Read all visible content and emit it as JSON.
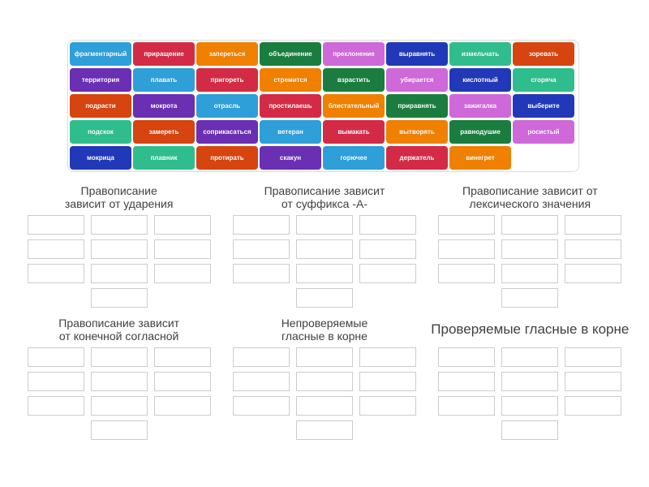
{
  "colors": {
    "panel_border": "#dcdcdc",
    "slot_border": "#cccccc",
    "title_text": "#404040",
    "tile_text": "#ffffff",
    "palette": [
      "#2e9fd9",
      "#d32b46",
      "#ef8000",
      "#1a7d3f",
      "#cf68d9",
      "#2139b8",
      "#2fbd8e",
      "#d6440f",
      "#6a2fb3"
    ]
  },
  "board": {
    "tiles": [
      {
        "label": "фрагментарный",
        "color": "#2e9fd9"
      },
      {
        "label": "приращение",
        "color": "#d32b46"
      },
      {
        "label": "запереться",
        "color": "#ef8000"
      },
      {
        "label": "объединение",
        "color": "#1a7d3f"
      },
      {
        "label": "преклонение",
        "color": "#cf68d9"
      },
      {
        "label": "выравнять",
        "color": "#2139b8"
      },
      {
        "label": "измельчать",
        "color": "#2fbd8e"
      },
      {
        "label": "зоревать",
        "color": "#d6440f"
      },
      {
        "label": "территория",
        "color": "#6a2fb3"
      },
      {
        "label": "плавать",
        "color": "#2e9fd9"
      },
      {
        "label": "пригореть",
        "color": "#d32b46"
      },
      {
        "label": "стремится",
        "color": "#ef8000"
      },
      {
        "label": "взрастить",
        "color": "#1a7d3f"
      },
      {
        "label": "убирается",
        "color": "#cf68d9"
      },
      {
        "label": "кислотный",
        "color": "#2139b8"
      },
      {
        "label": "сгоряча",
        "color": "#2fbd8e"
      },
      {
        "label": "подрасти",
        "color": "#d6440f"
      },
      {
        "label": "мокрота",
        "color": "#6a2fb3"
      },
      {
        "label": "отрасль",
        "color": "#2e9fd9"
      },
      {
        "label": "простилаешь",
        "color": "#d32b46"
      },
      {
        "label": "блистательный",
        "color": "#ef8000"
      },
      {
        "label": "приравнять",
        "color": "#1a7d3f"
      },
      {
        "label": "зажигалка",
        "color": "#cf68d9"
      },
      {
        "label": "выберите",
        "color": "#2139b8"
      },
      {
        "label": "подскок",
        "color": "#2fbd8e"
      },
      {
        "label": "замереть",
        "color": "#d6440f"
      },
      {
        "label": "соприкасаться",
        "color": "#6a2fb3"
      },
      {
        "label": "ветеран",
        "color": "#2e9fd9"
      },
      {
        "label": "вымакать",
        "color": "#d32b46"
      },
      {
        "label": "вытворять",
        "color": "#ef8000"
      },
      {
        "label": "равнодушие",
        "color": "#1a7d3f"
      },
      {
        "label": "росистый",
        "color": "#cf68d9"
      },
      {
        "label": "мокрица",
        "color": "#2139b8"
      },
      {
        "label": "плавник",
        "color": "#2fbd8e"
      },
      {
        "label": "протирать",
        "color": "#d6440f"
      },
      {
        "label": "скакун",
        "color": "#6a2fb3"
      },
      {
        "label": "горючее",
        "color": "#2e9fd9"
      },
      {
        "label": "держатель",
        "color": "#d32b46"
      },
      {
        "label": "винегрет",
        "color": "#ef8000"
      }
    ]
  },
  "categories": [
    {
      "title_line1": "Правописание",
      "title_line2": "зависит от ударения",
      "slot_count": 10
    },
    {
      "title_line1": "Правописание зависит",
      "title_line2": "от суффикса -А-",
      "slot_count": 10
    },
    {
      "title_line1": "Правописание зависит от",
      "title_line2": "лексического значения",
      "slot_count": 10
    },
    {
      "title_line1": "Правописание зависит",
      "title_line2": "от конечной согласной",
      "slot_count": 10
    },
    {
      "title_line1": "Непроверяемые",
      "title_line2": "гласные в корне",
      "slot_count": 10
    },
    {
      "title_line1": "Проверяемые гласные в корне",
      "title_line2": "",
      "slot_count": 10
    }
  ]
}
